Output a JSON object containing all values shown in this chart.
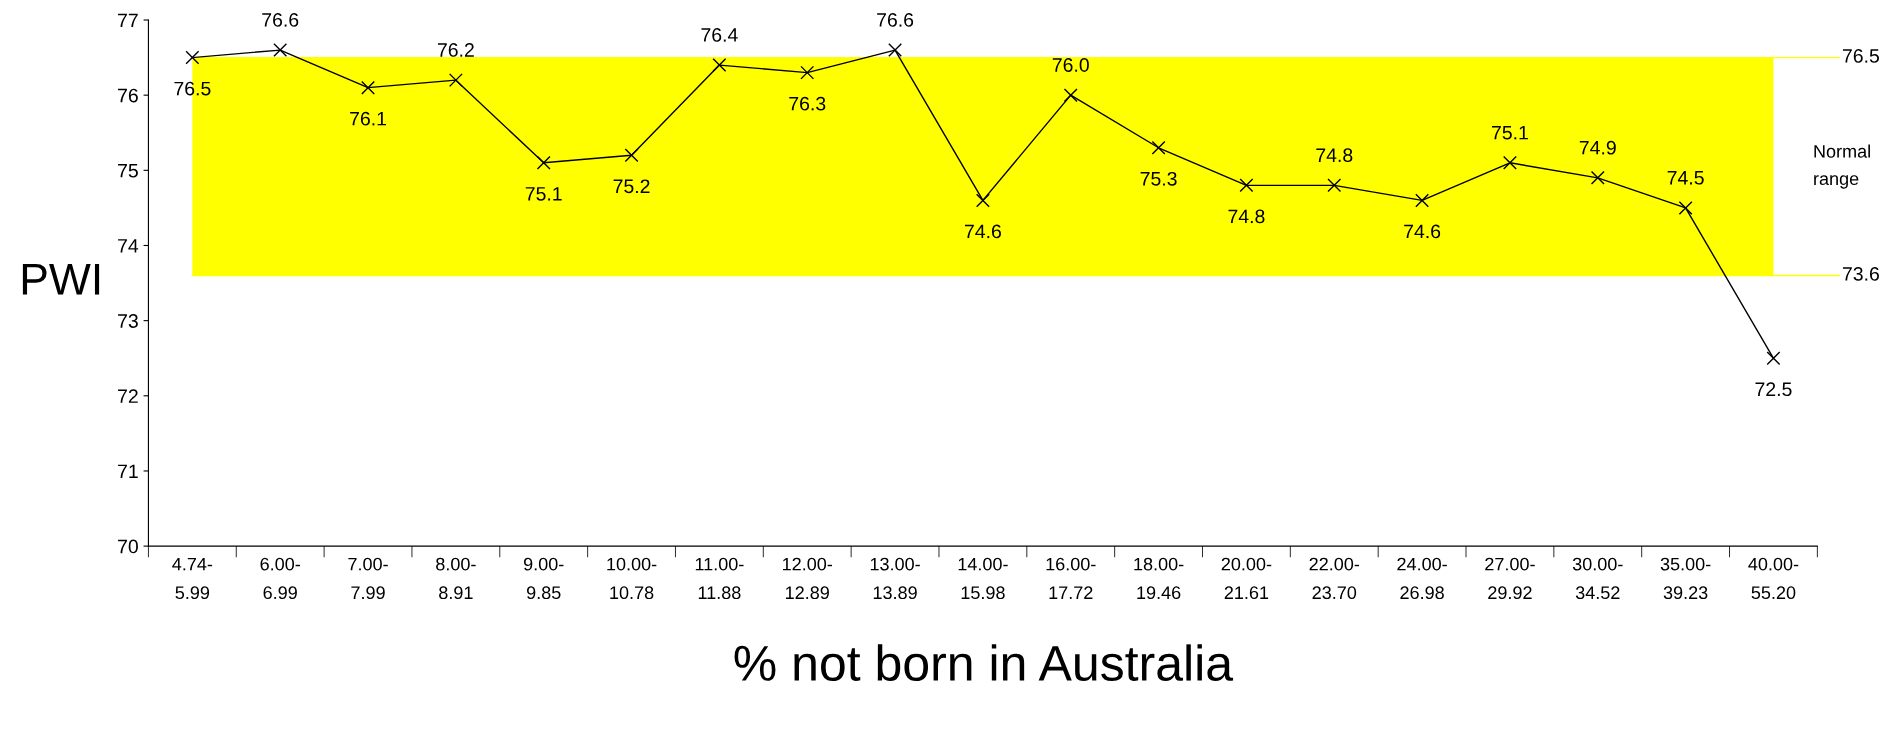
{
  "chart_data": {
    "type": "line",
    "xlabel": "% not born in Australia",
    "ylabel": "PWI",
    "categories": [
      "4.74-\n5.99",
      "6.00-\n6.99",
      "7.00-\n7.99",
      "8.00-\n8.91",
      "9.00-\n9.85",
      "10.00-\n10.78",
      "11.00-\n11.88",
      "12.00-\n12.89",
      "13.00-\n13.89",
      "14.00-\n15.98",
      "16.00-\n17.72",
      "18.00-\n19.46",
      "20.00-\n21.61",
      "22.00-\n23.70",
      "24.00-\n26.98",
      "27.00-\n29.92",
      "30.00-\n34.52",
      "35.00-\n39.23",
      "40.00-\n55.20"
    ],
    "series": [
      {
        "color": "#000000",
        "values": [
          76.5,
          76.6,
          76.1,
          76.2,
          75.1,
          75.2,
          76.4,
          76.3,
          76.6,
          74.6,
          76.0,
          75.3,
          74.8,
          74.8,
          74.6,
          75.1,
          74.9,
          74.5,
          72.5
        ]
      }
    ],
    "ylim": [
      70,
      77
    ],
    "yticks": [
      70,
      71,
      72,
      73,
      74,
      75,
      76,
      77
    ],
    "bands": [
      {
        "axis": "y",
        "from": 73.6,
        "to": 76.5,
        "label": "Normal range",
        "color": "#ffff00"
      }
    ],
    "ref_lines": [
      {
        "axis": "y",
        "value": 76.5,
        "label": "76.5",
        "color": "#ffff00"
      },
      {
        "axis": "y",
        "value": 73.6,
        "label": "73.6",
        "color": "#ffff00"
      }
    ],
    "value_labels": [
      "76.5",
      "76.6",
      "76.1",
      "76.2",
      "75.1",
      "75.2",
      "76.4",
      "76.3",
      "76.6",
      "74.6",
      "76.0",
      "75.3",
      "74.8",
      "74.8",
      "74.6",
      "75.1",
      "74.9",
      "74.5",
      "72.5"
    ],
    "marker": "cross",
    "line_style": "solid",
    "grid": false
  }
}
